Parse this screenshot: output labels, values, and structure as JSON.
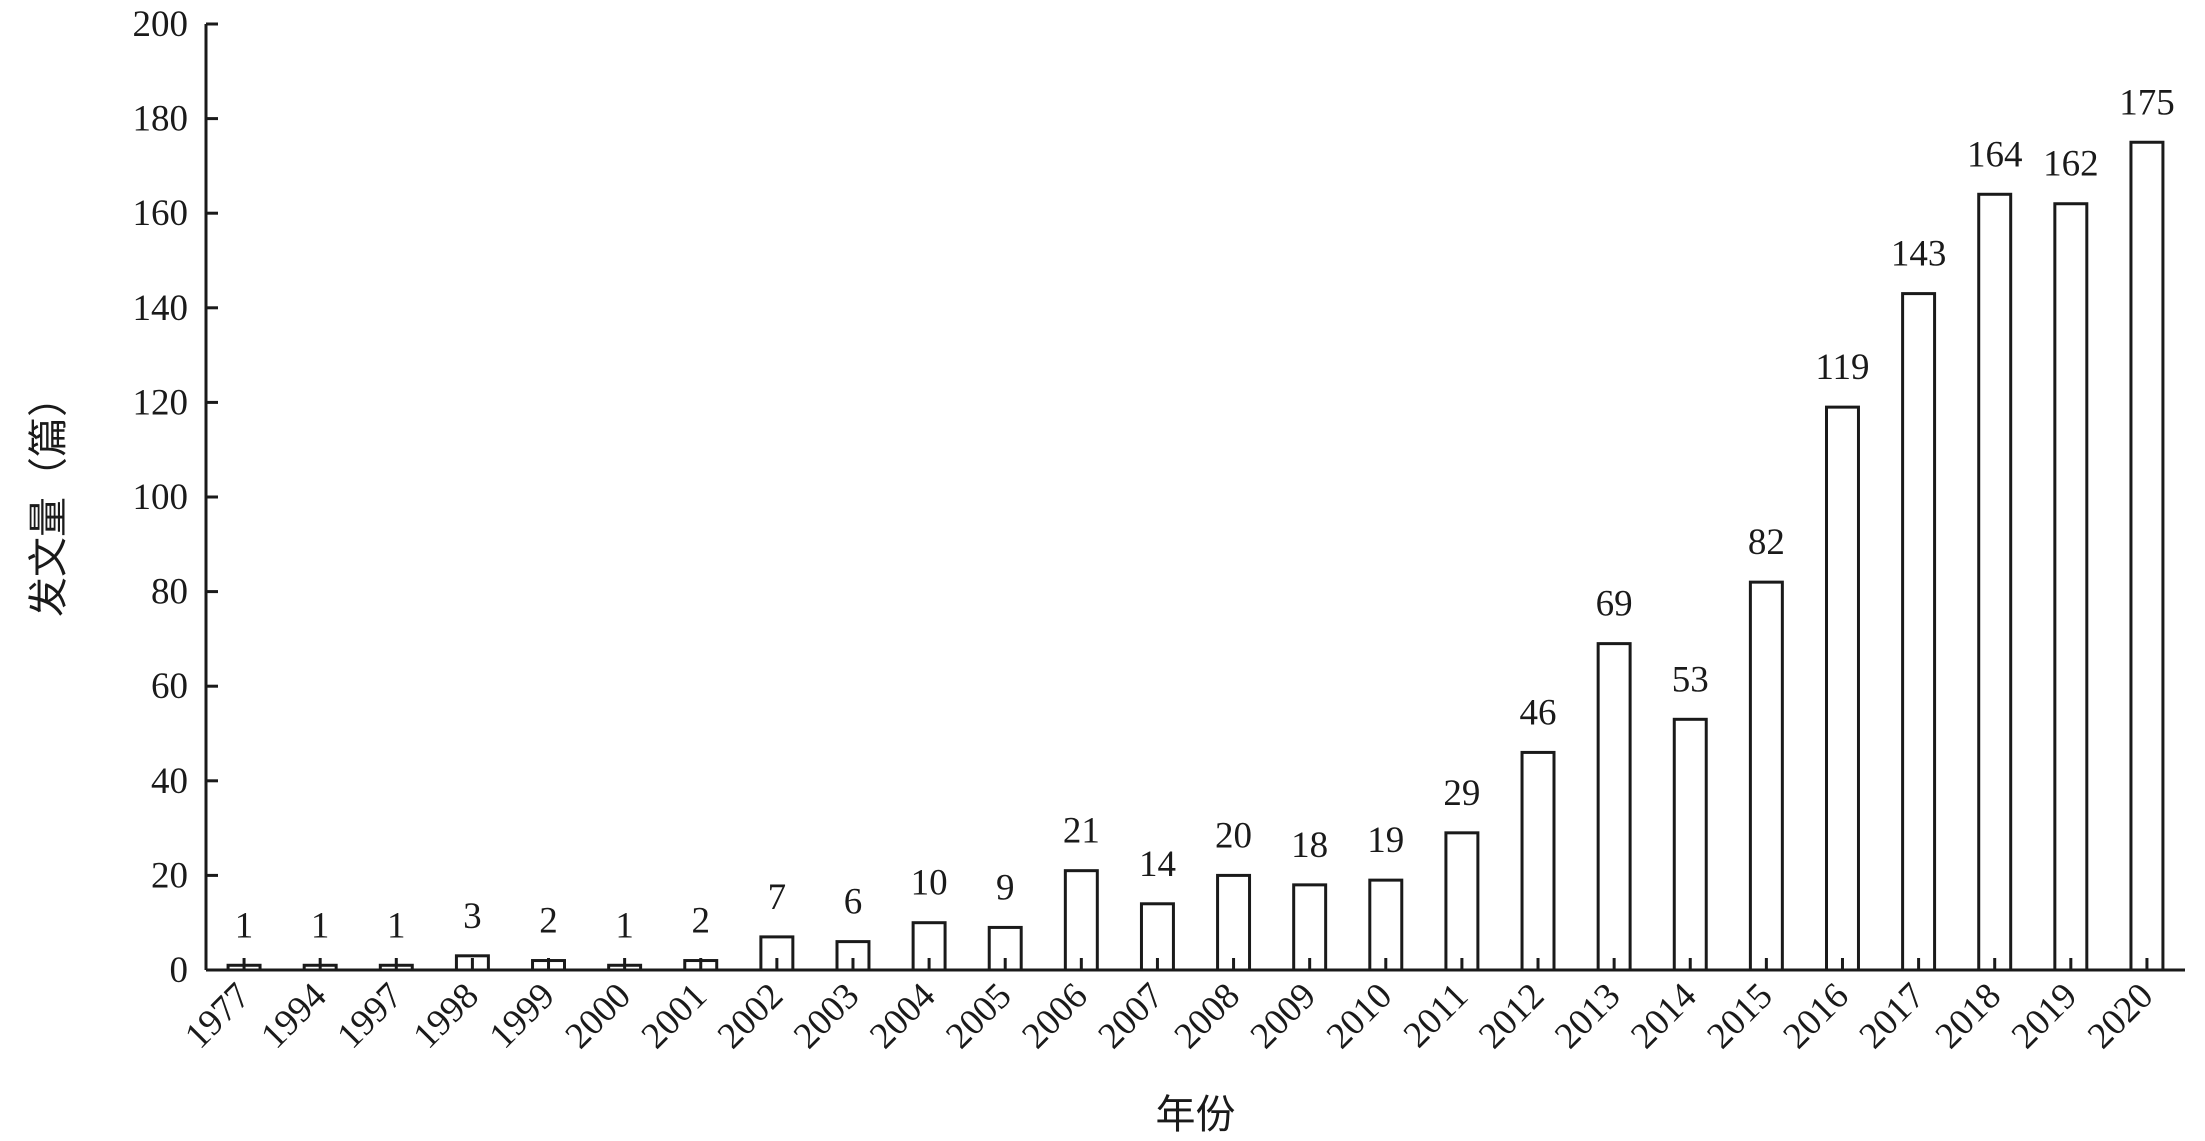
{
  "chart_data": {
    "type": "bar",
    "xlabel": "年份",
    "ylabel": "发文量（篇）",
    "ylim": [
      0,
      200
    ],
    "yticks": [
      0,
      20,
      40,
      60,
      80,
      100,
      120,
      140,
      160,
      180,
      200
    ],
    "grid": false,
    "categories": [
      "1977",
      "1994",
      "1997",
      "1998",
      "1999",
      "2000",
      "2001",
      "2002",
      "2003",
      "2004",
      "2005",
      "2006",
      "2007",
      "2008",
      "2009",
      "2010",
      "2011",
      "2012",
      "2013",
      "2014",
      "2015",
      "2016",
      "2017",
      "2018",
      "2019",
      "2020"
    ],
    "values": [
      1,
      1,
      1,
      3,
      2,
      1,
      2,
      7,
      6,
      10,
      9,
      21,
      14,
      20,
      18,
      19,
      29,
      46,
      69,
      53,
      82,
      119,
      143,
      164,
      162,
      175
    ],
    "data_labels": [
      "1",
      "1",
      "1",
      "3",
      "2",
      "1",
      "2",
      "7",
      "6",
      "10",
      "9",
      "21",
      "14",
      "20",
      "18",
      "19",
      "29",
      "46",
      "69",
      "53",
      "82",
      "119",
      "143",
      "164",
      "162",
      "175"
    ],
    "colors": {
      "bar_fill": "#ffffff",
      "bar_stroke": "#1a1a1a",
      "axis": "#1a1a1a"
    }
  }
}
